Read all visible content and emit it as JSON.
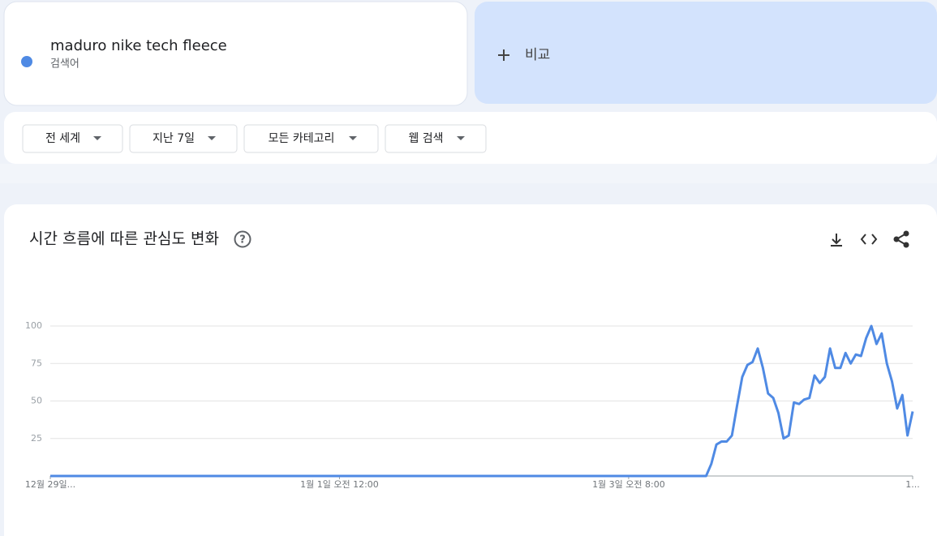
{
  "search_term_caption": "검색어",
  "compare": "비교",
  "filters": [
    "전 세계",
    "지난 7일",
    "모든 카테고리",
    "웹 검색"
  ],
  "chart_data": {
    "type": "line",
    "title": "시간 흐름에 따른 관심도 변화",
    "x": [
      0,
      127,
      128,
      129,
      130,
      131,
      132,
      133,
      134,
      135,
      136,
      137,
      138,
      139,
      140,
      141,
      142,
      143,
      144,
      145,
      146,
      147,
      148,
      149,
      150,
      151,
      152,
      153,
      154,
      155,
      156,
      157,
      158,
      159,
      160,
      161,
      162,
      163,
      164,
      165,
      166,
      167
    ],
    "series": [
      {
        "name": "maduro nike tech fleece",
        "color": "#4f8ae4",
        "values": [
          0,
          0,
          8,
          21,
          23,
          23,
          27,
          47,
          66,
          74,
          76,
          85,
          72,
          55,
          52,
          42,
          25,
          27,
          49,
          48,
          51,
          52,
          67,
          62,
          66,
          85,
          72,
          72,
          82,
          75,
          81,
          80,
          92,
          100,
          88,
          95,
          75,
          63,
          45,
          54,
          27,
          43
        ]
      }
    ],
    "xlim": [
      0,
      167
    ],
    "xticks": [
      {
        "value": 0,
        "label": "12월 29일..."
      },
      {
        "value": 56,
        "label": "1월 1일 오전 12:00"
      },
      {
        "value": 112,
        "label": "1월 3일 오전 8:00"
      },
      {
        "value": 167,
        "label": "1..."
      }
    ],
    "ylim": [
      0,
      100
    ],
    "yticks": [
      25,
      50,
      75,
      100
    ],
    "grid": true
  }
}
